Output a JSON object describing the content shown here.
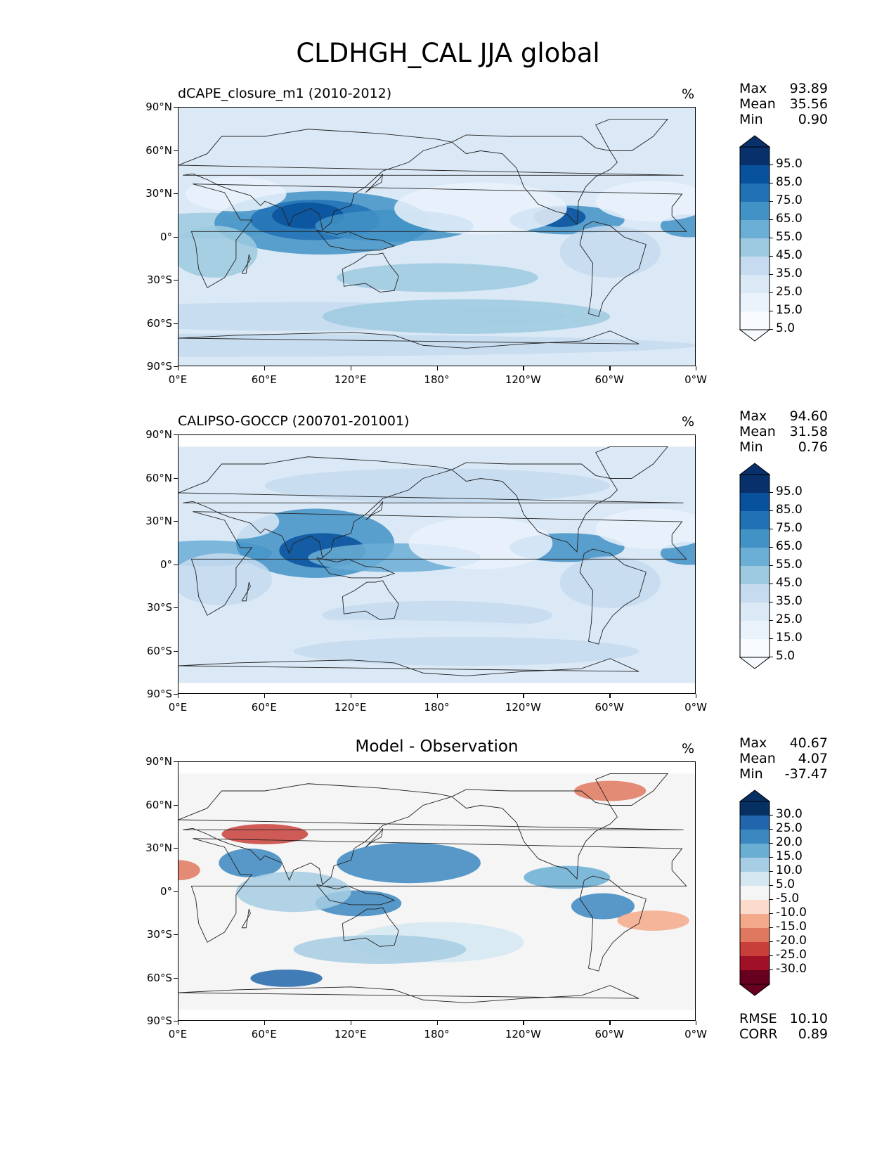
{
  "title": "CLDHGH_CAL JJA global",
  "lat_ticks": [
    "90°N",
    "60°N",
    "30°N",
    "0°",
    "30°S",
    "60°S",
    "90°S"
  ],
  "lon_ticks": [
    "0°E",
    "60°E",
    "120°E",
    "180°",
    "120°W",
    "60°W",
    "0°W"
  ],
  "panels": [
    {
      "title": "dCAPE_closure_m1 (2010-2012)",
      "units": "%",
      "stats": [
        {
          "label": "Max",
          "value": "93.89"
        },
        {
          "label": "Mean",
          "value": "35.56"
        },
        {
          "label": "Min",
          "value": "0.90"
        }
      ],
      "colorbar": {
        "labels": [
          "95.0",
          "85.0",
          "75.0",
          "65.0",
          "55.0",
          "45.0",
          "35.0",
          "25.0",
          "15.0",
          "5.0"
        ],
        "colors": [
          "#08306b",
          "#08519c",
          "#2171b5",
          "#4292c6",
          "#6baed6",
          "#9ecae1",
          "#c6dbef",
          "#dbe9f6",
          "#eaf2fb",
          "#f7fbff"
        ]
      }
    },
    {
      "title": "CALIPSO-GOCCP (200701-201001)",
      "units": "%",
      "stats": [
        {
          "label": "Max",
          "value": "94.60"
        },
        {
          "label": "Mean",
          "value": "31.58"
        },
        {
          "label": "Min",
          "value": "0.76"
        }
      ],
      "colorbar": {
        "labels": [
          "95.0",
          "85.0",
          "75.0",
          "65.0",
          "55.0",
          "45.0",
          "35.0",
          "25.0",
          "15.0",
          "5.0"
        ],
        "colors": [
          "#08306b",
          "#08519c",
          "#2171b5",
          "#4292c6",
          "#6baed6",
          "#9ecae1",
          "#c6dbef",
          "#dbe9f6",
          "#eaf2fb",
          "#f7fbff"
        ]
      }
    },
    {
      "title": "Model - Observation",
      "units": "%",
      "stats": [
        {
          "label": "Max",
          "value": "40.67"
        },
        {
          "label": "Mean",
          "value": "4.07"
        },
        {
          "label": "Min",
          "value": "-37.47"
        }
      ],
      "extra_stats": [
        {
          "label": "RMSE",
          "value": "10.10"
        },
        {
          "label": "CORR",
          "value": "0.89"
        }
      ],
      "colorbar": {
        "labels": [
          "30.0",
          "25.0",
          "20.0",
          "15.0",
          "10.0",
          "5.0",
          "-5.0",
          "-10.0",
          "-15.0",
          "-20.0",
          "-25.0",
          "-30.0"
        ],
        "colors": [
          "#053061",
          "#2166ac",
          "#3b87c0",
          "#6aaed4",
          "#a6cde3",
          "#d5e7f1",
          "#f5f5f5",
          "#fbdccc",
          "#f4a98a",
          "#e0785f",
          "#c83f3a",
          "#a01127",
          "#67001f"
        ]
      }
    }
  ]
}
